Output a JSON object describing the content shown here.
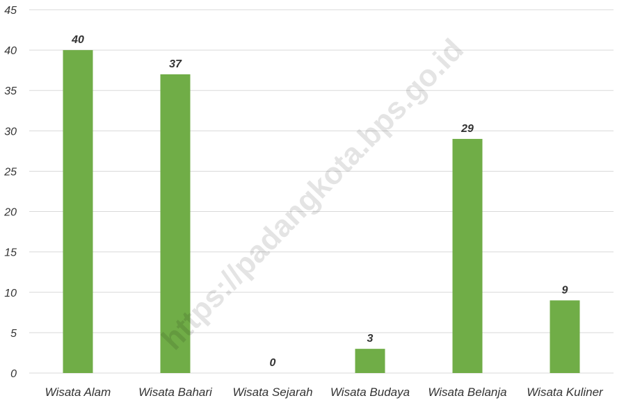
{
  "chart_data": {
    "type": "bar",
    "categories": [
      "Wisata Alam",
      "Wisata Bahari",
      "Wisata Sejarah",
      "Wisata Budaya",
      "Wisata Belanja",
      "Wisata Kuliner"
    ],
    "values": [
      40,
      37,
      0,
      3,
      29,
      9
    ],
    "title": "",
    "xlabel": "",
    "ylabel": "",
    "ylim": [
      0,
      45
    ],
    "yticks": [
      0,
      5,
      10,
      15,
      20,
      25,
      30,
      35,
      40,
      45
    ],
    "grid": true,
    "legend": "none",
    "bar_color": "#70ad47",
    "data_labels": true
  },
  "watermark": {
    "text": "https://padangkota.bps.go.id"
  }
}
